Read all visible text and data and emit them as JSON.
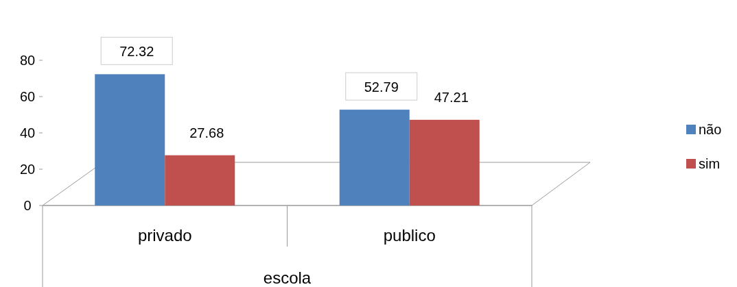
{
  "chart_data": {
    "type": "bar",
    "xlabel": "escola",
    "categories": [
      "privado",
      "publico"
    ],
    "series": [
      {
        "name": "não",
        "color": "#4f81bd",
        "values": [
          72.32,
          52.79
        ]
      },
      {
        "name": "sim",
        "color": "#c0504d",
        "values": [
          27.68,
          47.21
        ]
      }
    ],
    "ylim": [
      0,
      80
    ],
    "yticks": [
      0,
      20,
      40,
      60,
      80
    ],
    "data_labels": true,
    "legend": "right"
  }
}
